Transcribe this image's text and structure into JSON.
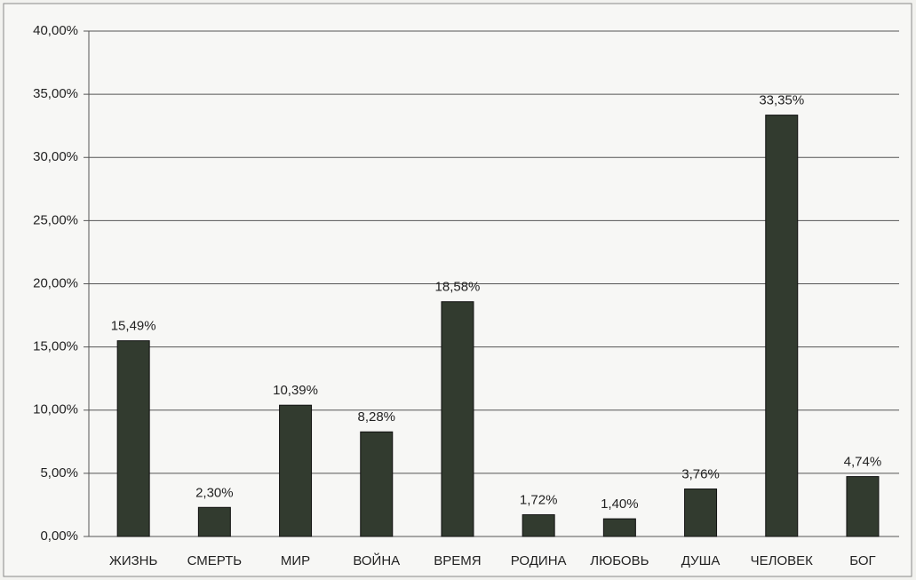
{
  "chart_data": {
    "type": "bar",
    "categories": [
      "ЖИЗНЬ",
      "СМЕРТЬ",
      "МИР",
      "ВОЙНА",
      "ВРЕМЯ",
      "РОДИНА",
      "ЛЮБОВЬ",
      "ДУША",
      "ЧЕЛОВЕК",
      "БОГ"
    ],
    "values": [
      15.49,
      2.3,
      10.39,
      8.28,
      18.58,
      1.72,
      1.4,
      3.76,
      33.35,
      4.74
    ],
    "value_labels": [
      "15,49%",
      "2,30%",
      "10,39%",
      "8,28%",
      "18,58%",
      "1,72%",
      "1,40%",
      "3,76%",
      "33,35%",
      "4,74%"
    ],
    "color": "#323b2f",
    "ylim": [
      0,
      40
    ],
    "yticks": [
      {
        "value": 0,
        "label": "0,00%"
      },
      {
        "value": 5,
        "label": "5,00%"
      },
      {
        "value": 10,
        "label": "10,00%"
      },
      {
        "value": 15,
        "label": "15,00%"
      },
      {
        "value": 20,
        "label": "20,00%"
      },
      {
        "value": 25,
        "label": "25,00%"
      },
      {
        "value": 30,
        "label": "30,00%"
      },
      {
        "value": 35,
        "label": "35,00%"
      },
      {
        "value": 40,
        "label": "40,00%"
      }
    ],
    "grid": true
  }
}
